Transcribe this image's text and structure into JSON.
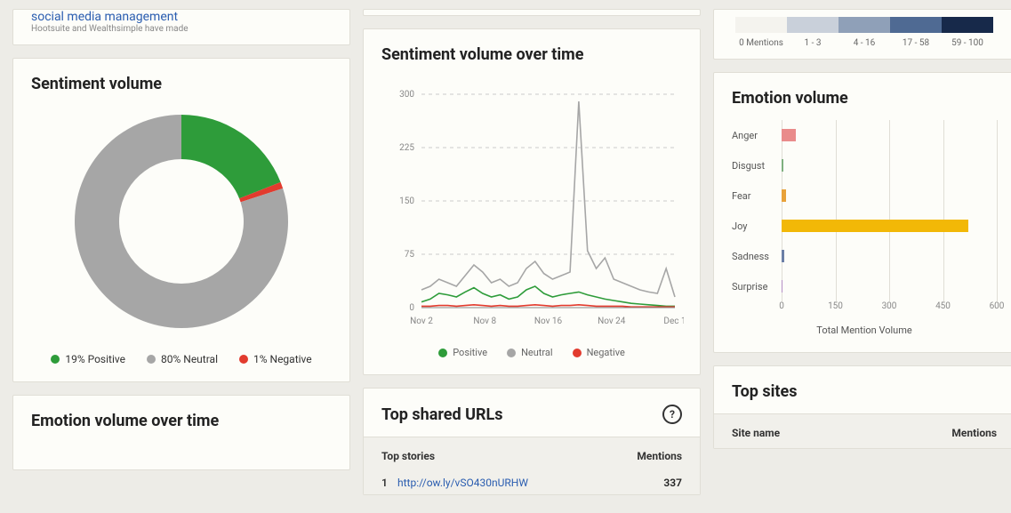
{
  "header_stub": {
    "link_text": "social media management",
    "sub_text": "Hootsuite and Wealthsimple have made"
  },
  "sentiment_volume": {
    "title": "Sentiment volume",
    "type": "donut",
    "slices": [
      {
        "label": "Positive",
        "pct": 19,
        "color": "#2e9c3a"
      },
      {
        "label": "Neutral",
        "pct": 80,
        "color": "#a6a6a6"
      },
      {
        "label": "Negative",
        "pct": 1,
        "color": "#e23b2e"
      }
    ],
    "legend_format": "{pct}% {label}",
    "inner_radius": 70,
    "outer_radius": 120,
    "background": "#fdfdf9"
  },
  "sentiment_over_time": {
    "title": "Sentiment volume over time",
    "type": "line",
    "ylim": [
      0,
      300
    ],
    "ytick_step": 75,
    "x_ticks": [
      "Nov 2",
      "Nov 8",
      "Nov 16",
      "Nov 24",
      "Dec 1"
    ],
    "grid_color": "#cccccc",
    "grid_dash": "4 4",
    "series": [
      {
        "name": "Positive",
        "color": "#2e9c3a",
        "values": [
          8,
          12,
          20,
          18,
          15,
          22,
          28,
          20,
          15,
          18,
          12,
          15,
          25,
          30,
          20,
          15,
          18,
          20,
          22,
          18,
          15,
          12,
          10,
          8,
          6,
          5,
          4,
          3,
          2,
          2
        ]
      },
      {
        "name": "Neutral",
        "color": "#a6a6a6",
        "values": [
          25,
          30,
          40,
          35,
          30,
          45,
          60,
          50,
          35,
          40,
          30,
          35,
          55,
          65,
          48,
          40,
          45,
          50,
          290,
          80,
          55,
          70,
          40,
          35,
          30,
          25,
          22,
          20,
          55,
          15
        ]
      },
      {
        "name": "Negative",
        "color": "#e23b2e",
        "values": [
          2,
          2,
          3,
          3,
          2,
          3,
          4,
          3,
          2,
          3,
          2,
          2,
          3,
          4,
          3,
          2,
          3,
          3,
          4,
          3,
          2,
          2,
          2,
          2,
          1,
          1,
          1,
          1,
          1,
          1
        ]
      }
    ],
    "legend": [
      "Positive",
      "Neutral",
      "Negative"
    ],
    "legend_colors": [
      "#2e9c3a",
      "#a6a6a6",
      "#e23b2e"
    ]
  },
  "emotion_volume_over_time": {
    "title": "Emotion volume over time"
  },
  "top_urls": {
    "title": "Top shared URLs",
    "col_story": "Top stories",
    "col_mentions": "Mentions",
    "rows": [
      {
        "idx": 1,
        "url": "http://ow.ly/vSO430nURHW",
        "mentions": 337
      }
    ]
  },
  "heatmap_legend": {
    "cells": [
      {
        "label": "0 Mentions",
        "color": "#f4f3ee"
      },
      {
        "label": "1 - 3",
        "color": "#c9d0da"
      },
      {
        "label": "4 - 16",
        "color": "#8fa0b8"
      },
      {
        "label": "17 - 58",
        "color": "#4f6a93"
      },
      {
        "label": "59 - 100",
        "color": "#17294a"
      }
    ]
  },
  "emotion_volume": {
    "title": "Emotion volume",
    "type": "bar-horizontal",
    "xlabel": "Total Mention Volume",
    "xlim": [
      0,
      600
    ],
    "xtick_step": 150,
    "grid_color": "#e0ded6",
    "bars": [
      {
        "label": "Anger",
        "value": 40,
        "color": "#e98b8b"
      },
      {
        "label": "Disgust",
        "value": 4,
        "color": "#7fb07f"
      },
      {
        "label": "Fear",
        "value": 12,
        "color": "#e8a23a"
      },
      {
        "label": "Joy",
        "value": 520,
        "color": "#f2b807"
      },
      {
        "label": "Sadness",
        "value": 8,
        "color": "#6b7fa6"
      },
      {
        "label": "Surprise",
        "value": 2,
        "color": "#b58fc6"
      }
    ]
  },
  "top_sites": {
    "title": "Top sites",
    "col_site": "Site name",
    "col_mentions": "Mentions"
  }
}
